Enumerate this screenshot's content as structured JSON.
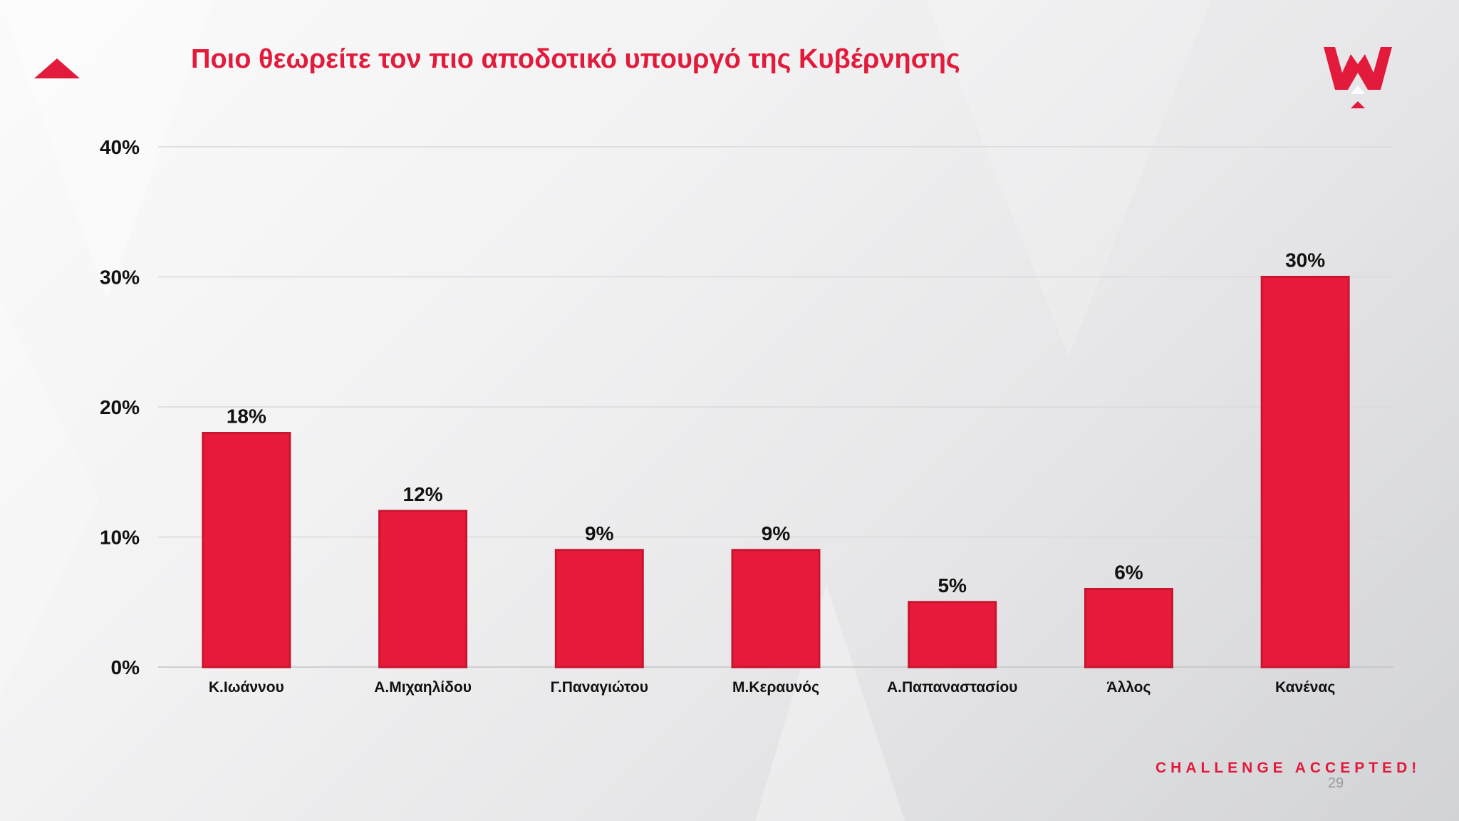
{
  "slide": {
    "title": "Ποιο θεωρείτε τον πιο αποδοτικό υπουργό της Κυβέρνησης",
    "tagline": "CHALLENGE ACCEPTED!",
    "page_number": "29"
  },
  "colors": {
    "accent": "#e21a3b",
    "bar": "#e81a3b",
    "bar_edge": "#c9152f",
    "text": "#111111"
  },
  "icons": {
    "corner": "red-triangle-arrow-icon",
    "logo": "w-crown-logo-icon"
  },
  "chart_data": {
    "type": "bar",
    "title": "Ποιο θεωρείτε τον πιο αποδοτικό υπουργό της Κυβέρνησης",
    "xlabel": "",
    "ylabel": "",
    "categories": [
      "Κ.Ιωάννου",
      "Α.Μιχαηλίδου",
      "Γ.Παναγιώτου",
      "Μ.Κεραυνός",
      "Α.Παπαναστασίου",
      "Άλλος",
      "Κανένας"
    ],
    "values": [
      18,
      12,
      9,
      9,
      5,
      6,
      30
    ],
    "data_labels": [
      "18%",
      "12%",
      "9%",
      "9%",
      "5%",
      "6%",
      "30%"
    ],
    "ylim": [
      0,
      40
    ],
    "yticks": [
      0,
      10,
      20,
      30,
      40
    ],
    "ytick_labels": [
      "0%",
      "10%",
      "20%",
      "30%",
      "40%"
    ],
    "grid": true,
    "legend": "none"
  }
}
